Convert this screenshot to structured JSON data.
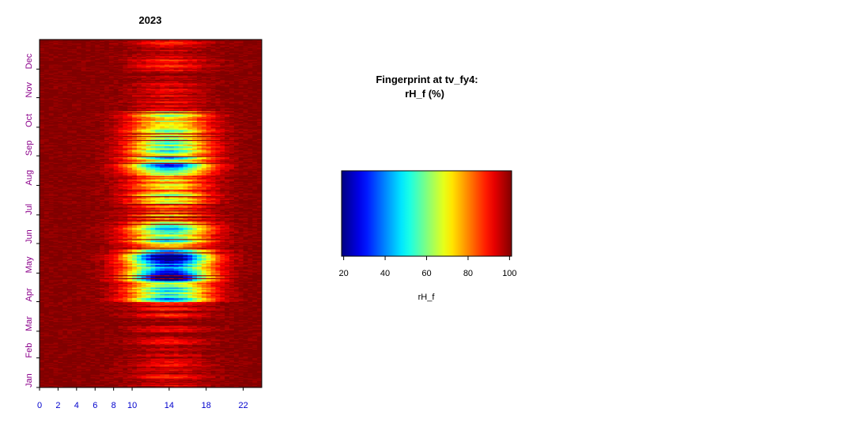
{
  "chart_data": [
    {
      "type": "heatmap",
      "title": "2023",
      "x": {
        "label": "",
        "range": [
          0,
          24
        ],
        "ticks": [
          0,
          2,
          4,
          6,
          8,
          10,
          14,
          18,
          22
        ],
        "tick_color": "#0000cd"
      },
      "y": {
        "label": "",
        "months": [
          "Jan",
          "Feb",
          "Mar",
          "Apr",
          "May",
          "Jun",
          "Jul",
          "Aug",
          "Sep",
          "Oct",
          "Nov",
          "Dec"
        ],
        "tick_color": "#8b008b"
      },
      "value_range": [
        15,
        100
      ],
      "pattern": {
        "night_high_rh": 100,
        "periods": [
          {
            "start_day": 0,
            "end_day": 90,
            "midday_min": 92
          },
          {
            "start_day": 90,
            "end_day": 95,
            "midday_min": 45
          },
          {
            "start_day": 95,
            "end_day": 112,
            "midday_min": 45
          },
          {
            "start_day": 112,
            "end_day": 145,
            "midday_min": 20
          },
          {
            "start_day": 145,
            "end_day": 170,
            "midday_min": 50
          },
          {
            "start_day": 170,
            "end_day": 182,
            "midday_min": 70
          },
          {
            "start_day": 182,
            "end_day": 225,
            "midday_min": 68
          },
          {
            "start_day": 225,
            "end_day": 272,
            "midday_min": 50
          },
          {
            "start_day": 272,
            "end_day": 290,
            "midday_min": 70
          },
          {
            "start_day": 290,
            "end_day": 365,
            "midday_min": 92
          }
        ]
      }
    },
    {
      "type": "colorbar",
      "title_line1": "Fingerprint at tv_fy4:",
      "title_line2": "rH_f (%)",
      "range": [
        19,
        101
      ],
      "ticks": [
        20,
        40,
        60,
        80,
        100
      ],
      "label": "rH_f",
      "colormap": "jet"
    }
  ]
}
